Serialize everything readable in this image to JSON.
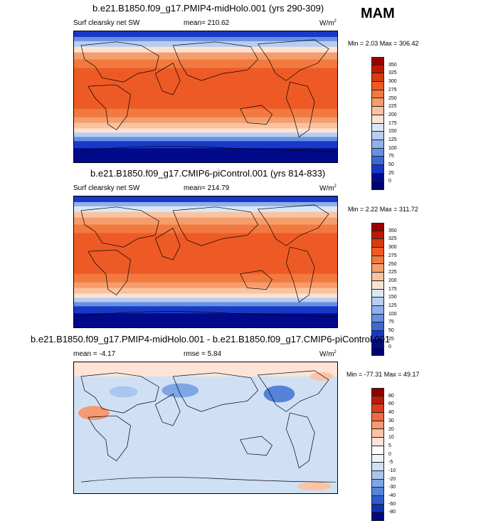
{
  "season": "MAM",
  "panels": [
    {
      "title": "b.e21.B1850.f09_g17.PMIP4-midHolo.001 (yrs 290-309)",
      "variable": "Surf clearsky net SW",
      "stat_text": "mean= 210.62",
      "units": "W/m",
      "units_sup": "2",
      "minmax_text": "Min =   2.03 Max = 306.42",
      "cbar_labels": [
        "350",
        "325",
        "300",
        "275",
        "250",
        "225",
        "200",
        "175",
        "150",
        "125",
        "100",
        "75",
        "50",
        "25",
        "0"
      ]
    },
    {
      "title": "b.e21.B1850.f09_g17.CMIP6-piControl.001 (yrs 814-833)",
      "variable": "Surf clearsky net SW",
      "stat_text": "mean= 214.79",
      "units": "W/m",
      "units_sup": "2",
      "minmax_text": "Min =   2.22 Max = 311.72",
      "cbar_labels": [
        "350",
        "325",
        "300",
        "275",
        "250",
        "225",
        "200",
        "175",
        "150",
        "125",
        "100",
        "75",
        "50",
        "25",
        "0"
      ]
    },
    {
      "title": "b.e21.B1850.f09_g17.PMIP4-midHolo.001 - b.e21.B1850.f09_g17.CMIP6-piControl.001",
      "stat_text": "mean =  -4.17",
      "rmse_text": "rmse =   5.84",
      "units": "W/m",
      "units_sup": "2",
      "minmax_text": "Min = -77.31 Max =  49.17",
      "cbar_labels": [
        "80",
        "60",
        "40",
        "30",
        "20",
        "10",
        "5",
        "0",
        "-5",
        "-10",
        "-20",
        "-30",
        "-40",
        "-60",
        "-80"
      ]
    }
  ],
  "colors": {
    "abs_scale": [
      "#990000",
      "#bb1a00",
      "#d93b10",
      "#ee5a26",
      "#f27a40",
      "#f59d6c",
      "#f9c3a0",
      "#fbe3d3",
      "#dbe7f7",
      "#b8cdf0",
      "#8fb0ea",
      "#6890e2",
      "#3e68d8",
      "#1838c8",
      "#000a8a"
    ],
    "diff_scale": [
      "#8a0000",
      "#b81c08",
      "#dc3b1c",
      "#ee6a40",
      "#f59a72",
      "#fac3a6",
      "#fde4d6",
      "#eef3fb",
      "#cfe0f5",
      "#a9c6ee",
      "#7ea6e4",
      "#5683da",
      "#2f5ccd",
      "#1232b4",
      "#000a78"
    ]
  }
}
